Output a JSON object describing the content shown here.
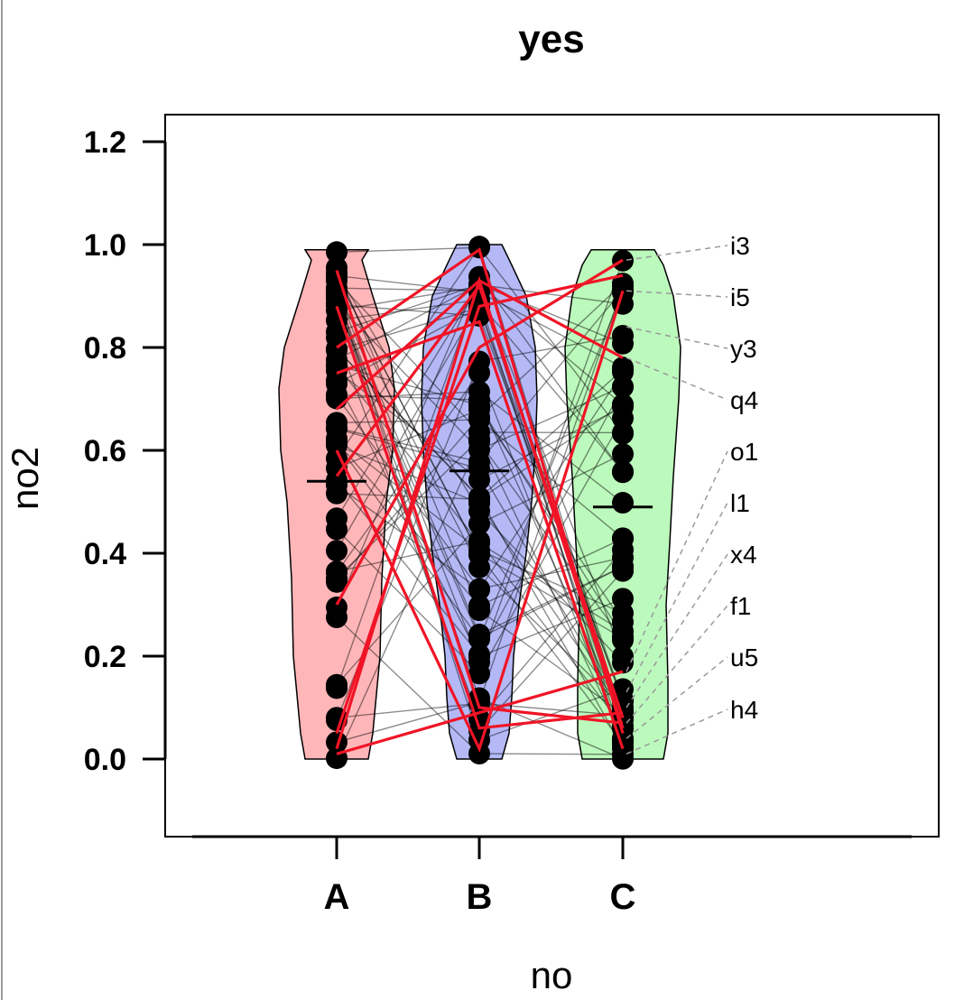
{
  "chart_data": {
    "type": "violin",
    "title": "yes",
    "xlabel": "no",
    "ylabel": "no2",
    "ylim": [
      -0.15,
      1.25
    ],
    "yticks": [
      "0.0",
      "0.2",
      "0.4",
      "0.6",
      "0.8",
      "1.0",
      "1.2"
    ],
    "categories": [
      "A",
      "B",
      "C"
    ],
    "colors": [
      "#ffb6b9",
      "#b4b9f6",
      "#bcf9bc"
    ],
    "means": [
      0.54,
      0.56,
      0.49
    ],
    "ranges": [
      [
        0.0,
        0.99
      ],
      [
        0.0,
        1.0
      ],
      [
        0.0,
        0.99
      ]
    ],
    "labels": [
      {
        "name": "i3",
        "value": 0.97
      },
      {
        "name": "i5",
        "value": 0.91
      },
      {
        "name": "y3",
        "value": 0.84
      },
      {
        "name": "q4",
        "value": 0.78
      },
      {
        "name": "o1",
        "value": 0.17
      },
      {
        "name": "l1",
        "value": 0.13
      },
      {
        "name": "x4",
        "value": 0.1
      },
      {
        "name": "f1",
        "value": 0.07
      },
      {
        "name": "u5",
        "value": 0.04
      },
      {
        "name": "h4",
        "value": 0.01
      }
    ],
    "highlight_paths": [
      [
        0.95,
        0.1,
        0.07
      ],
      [
        0.88,
        0.06,
        0.09
      ],
      [
        0.8,
        0.99,
        0.05
      ],
      [
        0.75,
        0.85,
        0.02
      ],
      [
        0.68,
        0.93,
        0.78
      ],
      [
        0.55,
        0.92,
        0.08
      ],
      [
        0.3,
        0.8,
        0.97
      ],
      [
        0.02,
        0.93,
        0.06
      ],
      [
        0.01,
        0.09,
        0.17
      ],
      [
        0.05,
        0.88,
        0.94
      ],
      [
        0.6,
        0.02,
        0.91
      ]
    ]
  }
}
